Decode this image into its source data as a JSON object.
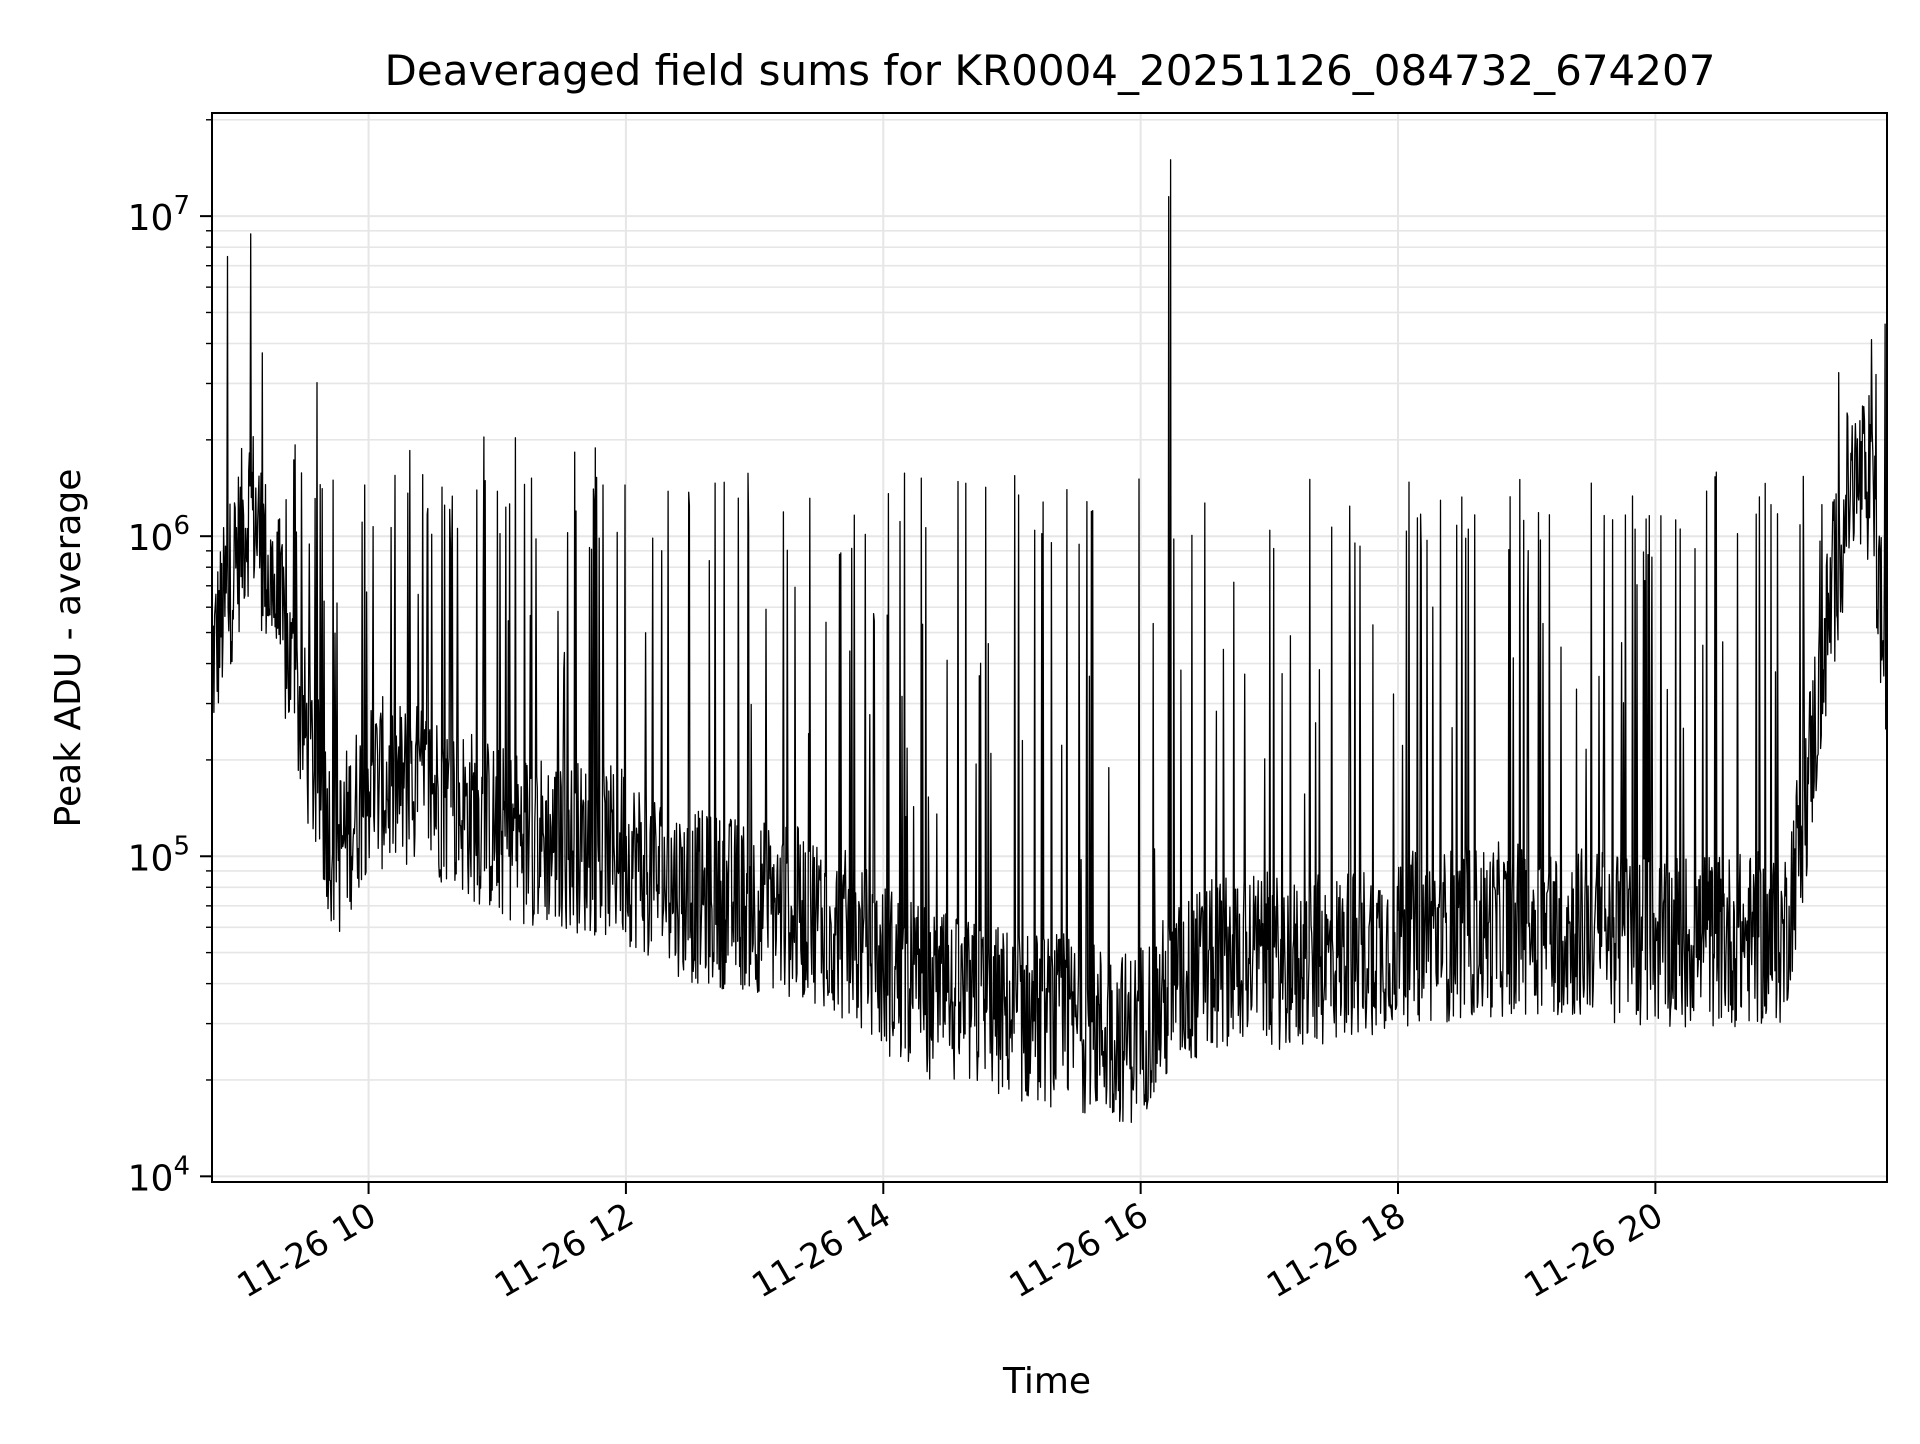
{
  "chart_data": {
    "type": "line",
    "title": "Deaveraged field sums for KR0004_20251126_084732_674207",
    "xlabel": "Time",
    "ylabel": "Peak ADU - average",
    "yscale": "log",
    "ylim": [
      9600,
      21000000
    ],
    "xlim": [
      "2025-11-26T08:47",
      "2025-11-26T21:48"
    ],
    "grid": "both (major + minor on y)",
    "x_tick_labels": [
      "11-26 10",
      "11-26 12",
      "11-26 14",
      "11-26 16",
      "11-26 18",
      "11-26 20"
    ],
    "y_tick_labels": [
      {
        "base": "10",
        "exp": "4",
        "value": 10000
      },
      {
        "base": "10",
        "exp": "5",
        "value": 100000
      },
      {
        "base": "10",
        "exp": "6",
        "value": 1000000
      },
      {
        "base": "10",
        "exp": "7",
        "value": 10000000
      }
    ],
    "colors": {
      "line": "#000000",
      "grid": "#e6e6e6"
    },
    "series": [
      {
        "baseline_x": [
          "2025-11-26T08:47",
          "2025-11-26T08:55",
          "2025-11-26T09:05",
          "2025-11-26T09:15",
          "2025-11-26T09:30",
          "2025-11-26T09:45",
          "2025-11-26T10:00",
          "2025-11-26T10:30",
          "2025-11-26T11:00",
          "2025-11-26T11:30",
          "2025-11-26T12:00",
          "2025-11-26T12:30",
          "2025-11-26T13:00",
          "2025-11-26T13:30",
          "2025-11-26T14:00",
          "2025-11-26T14:30",
          "2025-11-26T15:00",
          "2025-11-26T15:30",
          "2025-11-26T15:55",
          "2025-11-26T16:20",
          "2025-11-26T16:45",
          "2025-11-26T17:15",
          "2025-11-26T18:00",
          "2025-11-26T19:00",
          "2025-11-26T20:00",
          "2025-11-26T21:00",
          "2025-11-26T21:10",
          "2025-11-26T21:20",
          "2025-11-26T21:30",
          "2025-11-26T21:40",
          "2025-11-26T21:48"
        ],
        "baseline_y": [
          400000,
          700000,
          1300000,
          700000,
          250000,
          100000,
          170000,
          160000,
          120000,
          110000,
          100000,
          75000,
          70000,
          65000,
          45000,
          35000,
          32000,
          30000,
          27000,
          40000,
          50000,
          45000,
          55000,
          60000,
          55000,
          55000,
          150000,
          500000,
          1400000,
          1500000,
          350000
        ],
        "spikes": [
          {
            "x": "2025-11-26T09:05",
            "y": 8800000
          },
          {
            "x": "2025-11-26T16:13",
            "y": 11500000
          },
          {
            "x": "2025-11-26T16:14",
            "y": 15000000
          },
          {
            "x": "2025-11-26T21:43",
            "y": 3200000
          }
        ]
      }
    ]
  }
}
